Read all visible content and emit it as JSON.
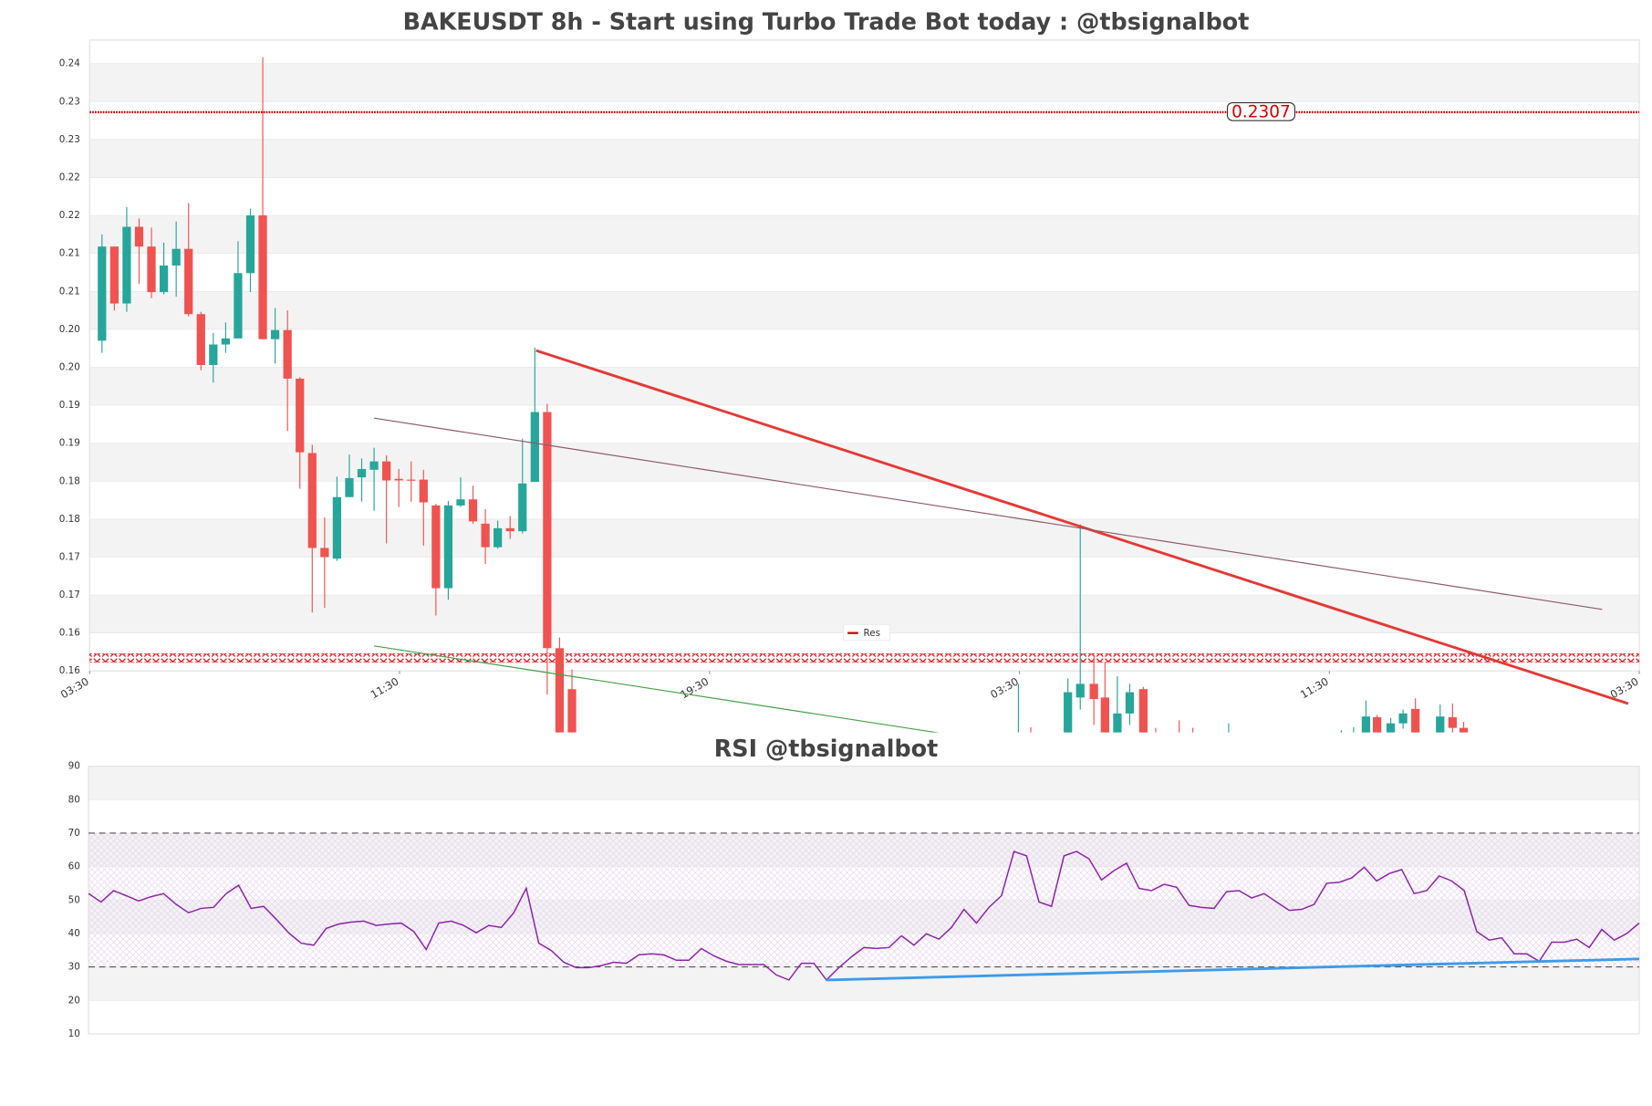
{
  "chart_data": [
    {
      "type": "candlestick",
      "title": "BAKEUSDT 8h - Start using Turbo Trade Bot today : @tbsignalbot",
      "colors": {
        "up": "#26a69a",
        "down": "#ef5350"
      },
      "x": [
        0,
        1,
        2,
        3,
        4,
        5,
        6,
        7,
        8,
        9,
        10,
        11,
        12,
        13,
        14,
        15,
        16,
        17,
        18,
        19,
        20,
        21,
        22,
        23,
        24,
        25,
        26,
        27,
        28,
        29,
        30,
        31,
        32,
        33,
        34,
        35,
        36,
        37,
        38,
        74.1,
        75.1,
        78.1,
        79.1,
        80.2,
        81.1,
        82.1,
        83.1,
        84.2,
        85.2,
        87.1,
        88.2,
        91.1,
        100.2,
        101.2,
        102.2,
        103.1,
        104.2,
        105.2,
        106.2,
        108.2,
        109.2,
        110.1
      ],
      "open": [
        0.2006,
        0.213,
        0.2055,
        0.2156,
        0.213,
        0.207,
        0.2105,
        0.2127,
        0.2041,
        0.1974,
        0.2001,
        0.2009,
        0.2095,
        0.2171,
        0.2008,
        0.202,
        0.1956,
        0.1858,
        0.1733,
        0.1719,
        0.18,
        0.1826,
        0.1836,
        0.1847,
        0.1824,
        0.1823,
        0.1823,
        0.1789,
        0.168,
        0.1789,
        0.1797,
        0.1765,
        0.1734,
        0.1759,
        0.1755,
        0.182,
        0.1912,
        0.1601,
        0.1547,
        0.146,
        0.1475,
        0.148,
        0.1536,
        0.1554,
        0.1536,
        0.147,
        0.1515,
        0.1547,
        0.1475,
        0.148,
        0.1475,
        0.1465,
        0.1465,
        0.1465,
        0.147,
        0.151,
        0.147,
        0.1502,
        0.1521,
        0.147,
        0.151,
        0.1496
      ],
      "high": [
        0.2146,
        0.213,
        0.2182,
        0.2167,
        0.2155,
        0.2135,
        0.2163,
        0.2187,
        0.2044,
        0.2016,
        0.203,
        0.2137,
        0.218,
        0.2379,
        0.2049,
        0.2046,
        0.1958,
        0.1869,
        0.1773,
        0.1827,
        0.1856,
        0.1851,
        0.1865,
        0.1855,
        0.1837,
        0.1847,
        0.1836,
        0.1791,
        0.1795,
        0.1826,
        0.1815,
        0.1784,
        0.1769,
        0.1775,
        0.1877,
        0.1997,
        0.1923,
        0.1615,
        0.1573,
        0.1554,
        0.1497,
        0.1561,
        0.1764,
        0.159,
        0.1583,
        0.1564,
        0.1554,
        0.155,
        0.1496,
        0.1506,
        0.1496,
        0.1502,
        0.1493,
        0.1497,
        0.1532,
        0.1513,
        0.1509,
        0.152,
        0.1535,
        0.1527,
        0.1528,
        0.1504
      ],
      "low": [
        0.199,
        0.2046,
        0.2044,
        0.2081,
        0.2062,
        0.2067,
        0.2064,
        0.2038,
        0.1967,
        0.1951,
        0.199,
        0.2009,
        0.207,
        0.2008,
        0.1976,
        0.1887,
        0.1811,
        0.1648,
        0.1654,
        0.1716,
        0.18,
        0.1794,
        0.1782,
        0.1739,
        0.1787,
        0.1794,
        0.1736,
        0.1644,
        0.1665,
        0.1787,
        0.1765,
        0.1712,
        0.1732,
        0.1745,
        0.1752,
        0.182,
        0.154,
        0.145,
        0.144,
        0.144,
        0.145,
        0.146,
        0.152,
        0.15,
        0.145,
        0.1455,
        0.15,
        0.144,
        0.145,
        0.1455,
        0.145,
        0.145,
        0.145,
        0.145,
        0.1455,
        0.1455,
        0.146,
        0.1495,
        0.1455,
        0.1455,
        0.148,
        0.147
      ],
      "close": [
        0.213,
        0.2055,
        0.2156,
        0.213,
        0.207,
        0.2105,
        0.2127,
        0.2041,
        0.1974,
        0.2001,
        0.2009,
        0.2095,
        0.2171,
        0.2008,
        0.202,
        0.1956,
        0.1859,
        0.1733,
        0.1721,
        0.18,
        0.1825,
        0.1837,
        0.1847,
        0.1822,
        0.1822,
        0.1822,
        0.1793,
        0.168,
        0.1789,
        0.1797,
        0.1768,
        0.1734,
        0.1759,
        0.1755,
        0.1818,
        0.1912,
        0.1601,
        0.148,
        0.147,
        0.147,
        0.1465,
        0.1543,
        0.1554,
        0.1534,
        0.147,
        0.1515,
        0.1543,
        0.146,
        0.1465,
        0.147,
        0.1465,
        0.1475,
        0.1475,
        0.1475,
        0.1511,
        0.147,
        0.1502,
        0.1515,
        0.147,
        0.1511,
        0.1496,
        0.148
      ],
      "xlim": [
        -1,
        124.3
      ],
      "xticks": [
        {
          "value": -1,
          "label": "03:30"
        },
        {
          "value": 24.06,
          "label": "11:30"
        },
        {
          "value": 49.12,
          "label": "19:30"
        },
        {
          "value": 74.18,
          "label": "03:30"
        },
        {
          "value": 99.24,
          "label": "11:30"
        },
        {
          "value": 124.3,
          "label": "03:30"
        }
      ],
      "ylim": [
        0.149,
        0.2402
      ],
      "yticks": [
        {
          "value": 0.2371,
          "label": "0.24"
        },
        {
          "value": 0.2321,
          "label": "0.23"
        },
        {
          "value": 0.2271,
          "label": "0.23"
        },
        {
          "value": 0.2221,
          "label": "0.22"
        },
        {
          "value": 0.2171,
          "label": "0.22"
        },
        {
          "value": 0.2121,
          "label": "0.21"
        },
        {
          "value": 0.2071,
          "label": "0.21"
        },
        {
          "value": 0.2021,
          "label": "0.20"
        },
        {
          "value": 0.1971,
          "label": "0.20"
        },
        {
          "value": 0.1921,
          "label": "0.19"
        },
        {
          "value": 0.1871,
          "label": "0.19"
        },
        {
          "value": 0.1821,
          "label": "0.18"
        },
        {
          "value": 0.1771,
          "label": "0.18"
        },
        {
          "value": 0.1721,
          "label": "0.17"
        },
        {
          "value": 0.1671,
          "label": "0.17"
        },
        {
          "value": 0.1621,
          "label": "0.16"
        },
        {
          "value": 0.1571,
          "label": "0.16"
        }
      ],
      "hlines": [
        {
          "name": "Res",
          "value": 0.2307,
          "color": "#d00000"
        },
        {
          "value": 0.1588,
          "color": "#d00000"
        }
      ],
      "trendlines": [
        {
          "x": [
            35.1,
            123.4
          ],
          "y": [
            0.1993,
            0.1528
          ],
          "color": "#e53935"
        },
        {
          "x": [
            22.0,
            121.3
          ],
          "y": [
            0.1904,
            0.1652
          ],
          "color": "#8d5a6a"
        },
        {
          "x": [
            22.0,
            67.8
          ],
          "y": [
            0.1604,
            0.1489
          ],
          "color": "#43a047"
        }
      ],
      "legend": "lower center"
    },
    {
      "type": "line",
      "title": "RSI @tbsignalbot",
      "color": "#8e24aa",
      "values": [
        51.9,
        49.4,
        52.8,
        51.3,
        49.7,
        51,
        51.9,
        48.7,
        46.2,
        47.5,
        47.8,
        51.9,
        54.4,
        47.5,
        48.1,
        44.3,
        40.2,
        37.1,
        36.5,
        41.5,
        42.8,
        43.4,
        43.7,
        42.4,
        42.8,
        43.1,
        40.6,
        35.2,
        43.1,
        43.7,
        42.4,
        40.2,
        42.4,
        41.8,
        46.2,
        53.5,
        37.1,
        34.9,
        31.4,
        29.8,
        29.8,
        30.4,
        31.4,
        31.1,
        33.6,
        33.9,
        33.6,
        32.0,
        32.0,
        35.5,
        33.3,
        31.7,
        30.7,
        30.7,
        30.7,
        27.6,
        26.1,
        31.1,
        31.1,
        26.1,
        29.8,
        33,
        35.8,
        35.5,
        35.8,
        39.3,
        36.5,
        39.9,
        38.3,
        41.8,
        47.2,
        43.1,
        47.8,
        51.3,
        64.5,
        63.2,
        49.4,
        48.1,
        63.2,
        64.5,
        62.3,
        56,
        58.8,
        61,
        53.5,
        52.8,
        54.7,
        53.8,
        48.4,
        47.8,
        47.5,
        52.5,
        52.8,
        50.6,
        51.9,
        49.4,
        46.9,
        47.2,
        48.7,
        55,
        55.3,
        56.6,
        59.8,
        55.7,
        57.9,
        59.1,
        51.9,
        52.8,
        57.2,
        55.7,
        52.8,
        40.6,
        38.0,
        38.7,
        33.9,
        33.9,
        31.7,
        37.4,
        37.4,
        38.3,
        35.8,
        41.2,
        38,
        40.0,
        43.1
      ],
      "ylim": [
        10,
        90
      ],
      "yticks": [
        10,
        20,
        30,
        40,
        50,
        60,
        70,
        80,
        90
      ],
      "hlines": [
        70,
        30
      ],
      "trendlines": [
        {
          "x": [
            59,
            124
          ],
          "y": [
            26.1,
            32.4
          ],
          "color": "#3d9be9"
        }
      ]
    }
  ]
}
